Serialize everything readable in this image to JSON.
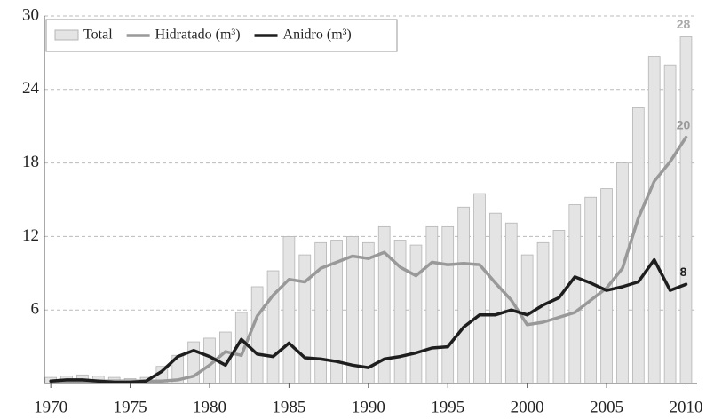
{
  "chart_data": {
    "type": "bar",
    "x": [
      1970,
      1971,
      1972,
      1973,
      1974,
      1975,
      1976,
      1977,
      1978,
      1979,
      1980,
      1981,
      1982,
      1983,
      1984,
      1985,
      1986,
      1987,
      1988,
      1989,
      1990,
      1991,
      1992,
      1993,
      1994,
      1995,
      1996,
      1997,
      1998,
      1999,
      2000,
      2001,
      2002,
      2003,
      2004,
      2005,
      2006,
      2007,
      2008,
      2009,
      2010
    ],
    "series": [
      {
        "name": "Total",
        "type": "bar",
        "color": "#e4e4e4",
        "stroke": "#b5b5b5",
        "values": [
          0.5,
          0.6,
          0.7,
          0.6,
          0.5,
          0.4,
          0.5,
          1.4,
          2.3,
          3.4,
          3.7,
          4.2,
          5.8,
          7.9,
          9.2,
          12.0,
          10.5,
          11.5,
          11.7,
          12.0,
          11.5,
          12.8,
          11.7,
          11.3,
          12.8,
          12.8,
          14.4,
          15.5,
          13.9,
          13.1,
          10.5,
          11.5,
          12.5,
          14.6,
          15.2,
          15.9,
          18.0,
          22.5,
          26.7,
          26.0,
          28.3
        ],
        "value_labels": [
          null,
          null,
          null,
          null,
          null,
          null,
          null,
          null,
          null,
          null,
          null,
          null,
          null,
          null,
          null,
          null,
          null,
          null,
          null,
          null,
          null,
          null,
          null,
          null,
          null,
          null,
          null,
          null,
          null,
          null,
          null,
          null,
          null,
          null,
          null,
          null,
          null,
          null,
          null,
          null,
          "28"
        ],
        "label_color": "#aaaaaa"
      },
      {
        "name": "Hidratado (m³)",
        "type": "line",
        "color": "#999999",
        "values": [
          0.2,
          0.2,
          0.2,
          0.2,
          0.2,
          0.2,
          0.2,
          0.2,
          0.3,
          0.6,
          1.5,
          2.6,
          2.3,
          5.5,
          7.2,
          8.5,
          8.3,
          9.4,
          9.9,
          10.4,
          10.2,
          10.7,
          9.5,
          8.8,
          9.9,
          9.7,
          9.8,
          9.7,
          8.2,
          6.8,
          4.8,
          5.0,
          5.4,
          5.8,
          6.8,
          7.8,
          9.4,
          13.5,
          16.5,
          18.1,
          20.1
        ],
        "value_labels": [
          null,
          null,
          null,
          null,
          null,
          null,
          null,
          null,
          null,
          null,
          null,
          null,
          null,
          null,
          null,
          null,
          null,
          null,
          null,
          null,
          null,
          null,
          null,
          null,
          null,
          null,
          null,
          null,
          null,
          null,
          null,
          null,
          null,
          null,
          null,
          null,
          null,
          null,
          null,
          null,
          "20"
        ],
        "label_color": "#999999"
      },
      {
        "name": "Anidro (m³)",
        "type": "line",
        "color": "#1e1e1e",
        "values": [
          0.2,
          0.3,
          0.3,
          0.2,
          0.1,
          0.1,
          0.2,
          1.0,
          2.2,
          2.7,
          2.2,
          1.5,
          3.6,
          2.4,
          2.2,
          3.3,
          2.1,
          2.0,
          1.8,
          1.5,
          1.3,
          2.0,
          2.2,
          2.5,
          2.9,
          3.0,
          4.6,
          5.6,
          5.6,
          6.0,
          5.6,
          6.4,
          7.0,
          8.7,
          8.2,
          7.6,
          7.9,
          8.3,
          10.1,
          7.6,
          8.1
        ],
        "value_labels": [
          null,
          null,
          null,
          null,
          null,
          null,
          null,
          null,
          null,
          null,
          null,
          null,
          null,
          null,
          null,
          null,
          null,
          null,
          null,
          null,
          null,
          null,
          null,
          null,
          null,
          null,
          null,
          null,
          null,
          null,
          null,
          null,
          null,
          null,
          null,
          null,
          null,
          null,
          null,
          null,
          "8"
        ],
        "label_color": "#1e1e1e"
      }
    ],
    "xlim": [
      1969.6,
      2010.7
    ],
    "xticks": [
      1970,
      1975,
      1980,
      1985,
      1990,
      1995,
      2000,
      2005,
      2010
    ],
    "ylim": [
      0,
      30
    ],
    "yticks": [
      6,
      12,
      18,
      24,
      30
    ],
    "grid": true,
    "legend": "upper left"
  }
}
